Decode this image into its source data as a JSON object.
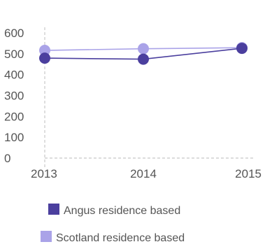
{
  "chart_data": {
    "type": "line",
    "categories": [
      "2013",
      "2014",
      "2015"
    ],
    "series": [
      {
        "name": "Angus residence based",
        "color": "#4b3f9e",
        "values": [
          479,
          474,
          526
        ]
      },
      {
        "name": "Scotland residence based",
        "color": "#aaa3e8",
        "values": [
          516,
          524,
          529
        ]
      }
    ],
    "y_ticks": [
      "0",
      "100",
      "200",
      "300",
      "400",
      "500",
      "600"
    ],
    "ylim": [
      0,
      600
    ],
    "grid": false,
    "legend_position": "bottom"
  }
}
